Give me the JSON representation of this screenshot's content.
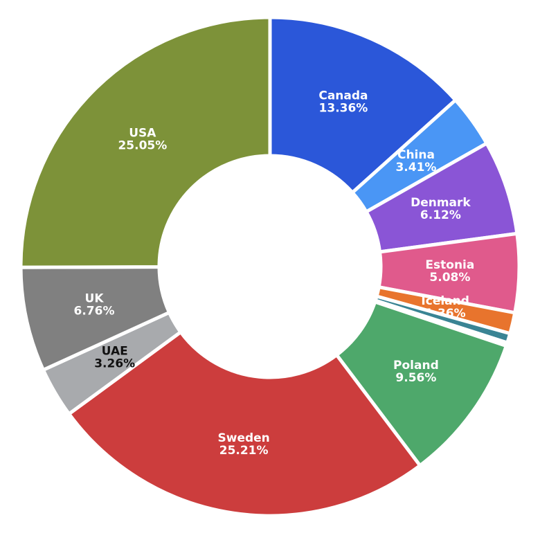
{
  "chart_data": {
    "type": "pie",
    "donut": true,
    "categories": [
      "Canada",
      "China",
      "Denmark",
      "Estonia",
      "Iceland",
      null,
      null,
      "Poland",
      "Sweden",
      "UAE",
      "UK",
      "USA"
    ],
    "values": [
      13.36,
      3.41,
      6.12,
      5.08,
      1.36,
      0.62,
      0.21,
      9.56,
      25.21,
      3.26,
      6.76,
      25.05
    ],
    "value_labels": [
      "13.36%",
      "3.41%",
      "6.12%",
      "5.08%",
      "1.36%",
      null,
      null,
      "9.56%",
      "25.21%",
      "3.26%",
      "6.76%",
      "25.05%"
    ],
    "colors": [
      "#2b57d9",
      "#4a96f5",
      "#8a55d6",
      "#e05a8c",
      "#e8742d",
      "#3a8494",
      "#e8b04a",
      "#4ea86b",
      "#cc3d3d",
      "#a8aaad",
      "#808080",
      "#7d9239"
    ],
    "label_colors": [
      "#ffffff",
      "#ffffff",
      "#ffffff",
      "#ffffff",
      "#ffffff",
      null,
      null,
      "#ffffff",
      "#ffffff",
      "#111111",
      "#ffffff",
      "#ffffff"
    ]
  }
}
